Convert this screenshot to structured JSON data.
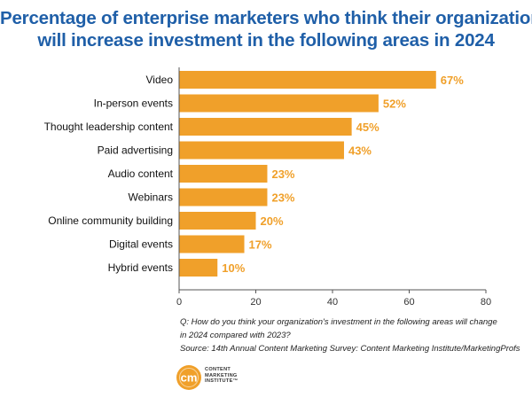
{
  "chart_data": {
    "type": "bar",
    "orientation": "horizontal",
    "title_lines": [
      "Percentage of enterprise marketers who think their organization",
      "will increase investment in the following areas in 2024"
    ],
    "categories": [
      "Video",
      "In-person events",
      "Thought leadership content",
      "Paid advertising",
      "Audio content",
      "Webinars",
      "Online community building",
      "Digital events",
      "Hybrid events"
    ],
    "values": [
      67,
      52,
      45,
      43,
      23,
      23,
      20,
      17,
      10
    ],
    "value_labels": [
      "67%",
      "52%",
      "45%",
      "43%",
      "23%",
      "23%",
      "20%",
      "17%",
      "10%"
    ],
    "xlim": [
      0,
      80
    ],
    "xticks": [
      "0",
      "20",
      "40",
      "60",
      "80"
    ],
    "grid": false,
    "colors": {
      "bar": "#f0a02a",
      "value_label": "#f0a02a",
      "title": "#1f5fa8"
    }
  },
  "footnote": {
    "question_line1": "Q: How do you think your organization's investment in the following areas will change",
    "question_line2": "in 2024 compared with 2023?",
    "source": "Source: 14th Annual Content Marketing Survey: Content Marketing Institute/MarketingProfs"
  },
  "logo": {
    "mark": "cm",
    "line1": "CONTENT",
    "line2": "MARKETING",
    "line3": "INSTITUTE",
    "trademark": "™",
    "colors": {
      "primary": "#f0a02a",
      "accent": "#e8731c"
    }
  }
}
